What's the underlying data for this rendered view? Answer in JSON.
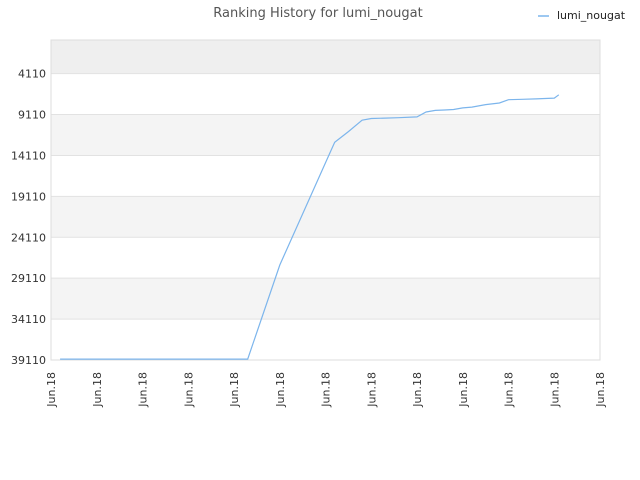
{
  "chart_data": {
    "type": "line",
    "title": "Ranking History for lumi_nougat",
    "y_reversed": true,
    "y_range": [
      39110,
      0
    ],
    "y_ticks": [
      4110,
      9110,
      14110,
      19110,
      24110,
      29110,
      34110,
      39110
    ],
    "y_tick_labels": [
      "4110",
      "9110",
      "14110",
      "19110",
      "24110",
      "29110",
      "34110",
      "39110"
    ],
    "x_tick_labels": [
      "Jun.18",
      "Jun.18",
      "Jun.18",
      "Jun.18",
      "Jun.18",
      "Jun.18",
      "Jun.18",
      "Jun.18",
      "Jun.18",
      "Jun.18",
      "Jun.18",
      "Jun.18",
      "Jun.18"
    ],
    "grid": true,
    "legend_position": "top-right",
    "line_color": "#7cb5ec",
    "band_colors": [
      "#efefef",
      "#ffffff",
      "#f4f4f4"
    ],
    "series": [
      {
        "name": "lumi_nougat",
        "x": [
          0.2,
          1,
          2,
          3,
          4,
          4.3,
          5,
          6,
          6.2,
          6.5,
          6.8,
          7,
          7.3,
          7.6,
          8,
          8.2,
          8.4,
          8.6,
          8.8,
          9,
          9.2,
          9.5,
          9.8,
          10,
          10.3,
          10.6,
          10.8,
          11,
          11.1
        ],
        "y": [
          39000,
          39000,
          39000,
          39000,
          39000,
          39000,
          27500,
          15000,
          12500,
          11200,
          9800,
          9600,
          9550,
          9500,
          9400,
          8800,
          8600,
          8550,
          8500,
          8300,
          8200,
          7900,
          7700,
          7300,
          7250,
          7200,
          7150,
          7100,
          6700
        ]
      }
    ]
  }
}
